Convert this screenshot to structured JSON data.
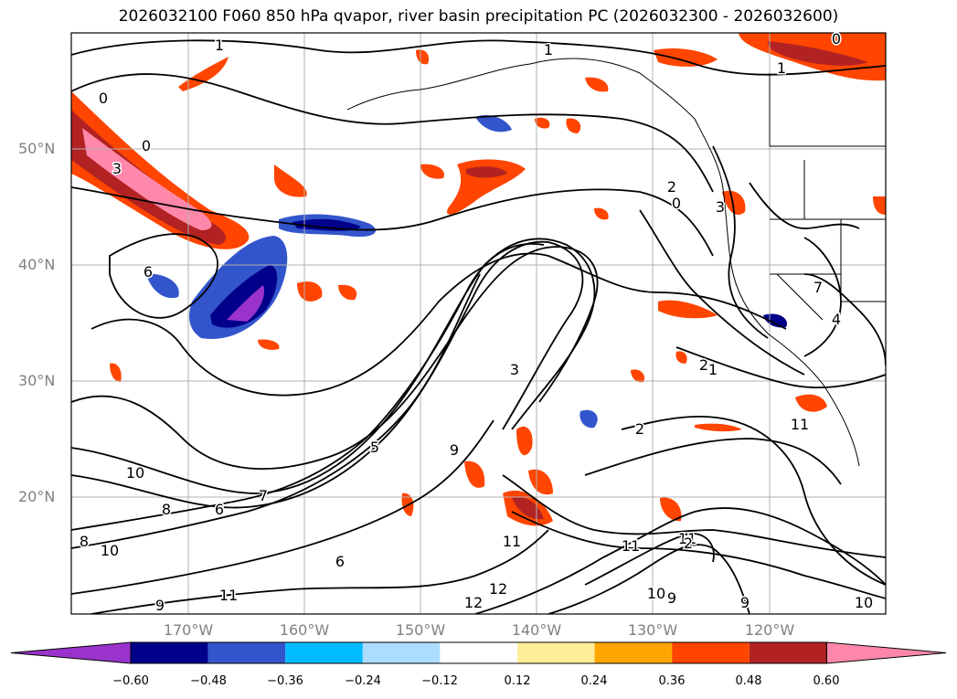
{
  "title": "2026032100 F060 850 hPa qvapor, river basin precipitation PC (2026032300 - 2026032600)",
  "map": {
    "projection": "plate-carree",
    "lon_range": [
      -180,
      -110
    ],
    "lat_range": [
      10,
      60
    ],
    "gridlines": true,
    "lat_labels": [
      "50°N",
      "40°N",
      "30°N",
      "20°N"
    ],
    "lon_labels": [
      "170°W",
      "160°W",
      "150°W",
      "140°W",
      "130°W",
      "120°W"
    ],
    "contour_labels": [
      "1",
      "0",
      "1",
      "0",
      "1",
      "0",
      "3",
      "6",
      "2",
      "0",
      "3",
      "2",
      "1",
      "2",
      "3",
      "7",
      "4",
      "5",
      "9",
      "10",
      "8",
      "6",
      "7",
      "8",
      "6",
      "9",
      "11",
      "12",
      "12",
      "11",
      "11",
      "10",
      "11",
      "9",
      "10",
      "9",
      "10",
      "11",
      "1",
      "2",
      "3"
    ]
  },
  "colorbar": {
    "ticks": [
      "−0.60",
      "−0.48",
      "−0.36",
      "−0.24",
      "−0.12",
      "0.12",
      "0.24",
      "0.36",
      "0.48",
      "0.60"
    ],
    "colors": [
      "#9933cc",
      "#00008b",
      "#3355cc",
      "#00bbff",
      "#aaddff",
      "#ffffff",
      "#ffee99",
      "#ffa500",
      "#ff4500",
      "#b22222",
      "#ff88aa"
    ],
    "extend": "both"
  }
}
